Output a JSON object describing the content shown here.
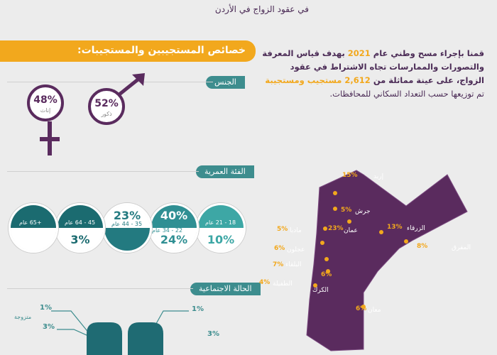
{
  "header": {
    "subtitle": "في عقود الزواج في الأردن"
  },
  "section": {
    "title": "خصائص المستجيبين والمستجيبات:"
  },
  "intro": {
    "line1_a": "قمنا بإجراء مسح وطني عام ",
    "line1_year": "2021",
    "line1_b": " بهدف قياس المعرفة",
    "line2": "والتصورات والممارسات تجاه الاشتراط في عقود",
    "line3_a": "الزواج، على عينة مماثلة من ",
    "line3_count": "2,612",
    "line3_b": " مستجيب ومستجيبة",
    "line4": "تم توزيعها حسب التعداد السكاني للمحافظات."
  },
  "gender": {
    "header": "الجنس",
    "male_pct": "52%",
    "male_label": "ذكور",
    "female_pct": "48%",
    "female_label": "إناث"
  },
  "age": {
    "header": "الفئة العمرية",
    "groups": [
      {
        "top_pct": "",
        "top_label": "18 - 21 عام",
        "bottom_pct": "10%",
        "color": "#3da7a5"
      },
      {
        "top_pct": "40%",
        "top_label": "22 - 34 عام",
        "bottom_pct": "24%",
        "color": "#2f8f93"
      },
      {
        "top_pct": "23%",
        "top_label": "35 - 44 عام",
        "bottom_pct": "",
        "color": "#237a80"
      },
      {
        "top_pct": "",
        "top_label": "45 - 64 عام",
        "bottom_pct": "3%",
        "color": "#1b6b70"
      },
      {
        "top_pct": "",
        "top_label": "+65 عام",
        "bottom_pct": "",
        "color": "#1b6b70"
      }
    ]
  },
  "marital": {
    "header": "الحالة الاجتماعية",
    "left_pct_1": "1%",
    "left_label_1": "متزوجة",
    "left_pct_2": "3%",
    "right_pct_1": "1%",
    "right_pct_2": "3%"
  },
  "map": {
    "regions": [
      {
        "name": "إربد",
        "pct": "15%"
      },
      {
        "name": "عجلون",
        "pct": "6%"
      },
      {
        "name": "المفرق",
        "pct": "8%"
      },
      {
        "name": "البلقاء",
        "pct": "7%"
      },
      {
        "name": "جرش",
        "pct": "5%"
      },
      {
        "name": "الزرقاء",
        "pct": "13%"
      },
      {
        "name": "مادبا",
        "pct": "5%"
      },
      {
        "name": "عمان",
        "pct": "23%"
      },
      {
        "name": "الطفيلة",
        "pct": "4%"
      },
      {
        "name": "الكرك",
        "pct": "6%"
      },
      {
        "name": "معان",
        "pct": "6%"
      }
    ]
  },
  "colors": {
    "purple": "#5a2b5e",
    "orange": "#f2a81d",
    "teal": "#3d8d8e"
  }
}
